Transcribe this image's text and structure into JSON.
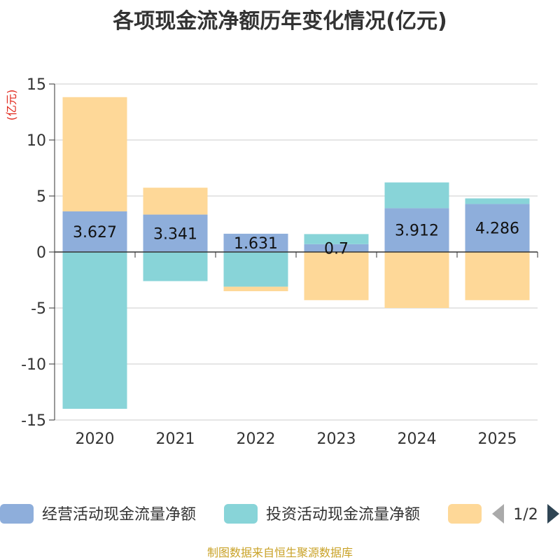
{
  "chart_data": {
    "type": "bar",
    "stacked": true,
    "title": "各项现金流净额历年变化情况(亿元)",
    "ylabel": "(亿元)",
    "ylim": [
      -15,
      15
    ],
    "yticks": [
      15,
      10,
      5,
      0,
      -5,
      -10,
      -15
    ],
    "categories": [
      "2020",
      "2021",
      "2022",
      "2023",
      "2024",
      "2025"
    ],
    "series": [
      {
        "name": "经营活动现金流量净额",
        "color": "#8eaedb",
        "values": [
          3.627,
          3.341,
          1.631,
          0.7,
          3.912,
          4.286
        ],
        "labels": [
          "3.627",
          "3.341",
          "1.631",
          "0.7",
          "3.912",
          "4.286"
        ]
      },
      {
        "name": "投资活动现金流量净额",
        "color": "#88d4d8",
        "values": [
          -14.0,
          -2.6,
          -3.1,
          0.9,
          2.3,
          0.5
        ]
      },
      {
        "name": "",
        "color": "#fed898",
        "values": [
          10.2,
          2.4,
          -0.4,
          -4.3,
          -5.0,
          -4.3
        ]
      }
    ],
    "legend_position": "bottom",
    "legend_page": "1/2"
  },
  "source_text": "制图数据来自恒生聚源数据库"
}
